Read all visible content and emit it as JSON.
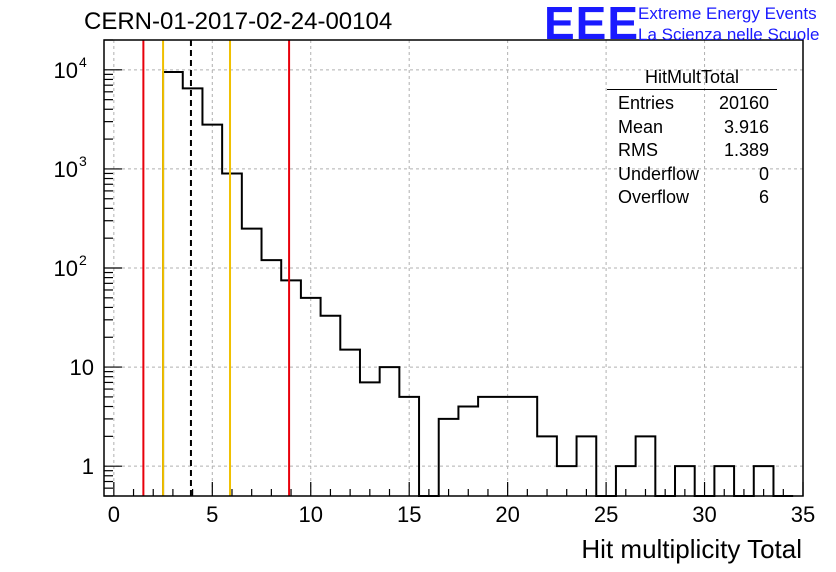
{
  "title": "CERN-01-2017-02-24-00104",
  "logo": {
    "mark": "EEE",
    "line1": "Extreme Energy Events",
    "line2": "La Scienza nelle Scuole",
    "color": "#1a1aff"
  },
  "stats_box": {
    "title": "HitMultTotal",
    "rows": [
      {
        "label": "Entries",
        "value": "20160"
      },
      {
        "label": "Mean",
        "value": "3.916"
      },
      {
        "label": "RMS",
        "value": "1.389"
      },
      {
        "label": "Underflow",
        "value": "0"
      },
      {
        "label": "Overflow",
        "value": "6"
      }
    ]
  },
  "chart_data": {
    "type": "histogram",
    "title": "CERN-01-2017-02-24-00104",
    "xlabel": "Hit multiplicity Total",
    "ylabel": "",
    "xlim": [
      -0.5,
      35
    ],
    "ylim": [
      0.5,
      20000
    ],
    "yscale": "log",
    "grid": true,
    "bin_width": 1,
    "bin_edges_start": -0.5,
    "bin_contents": [
      0,
      0,
      0,
      9500,
      6500,
      2800,
      900,
      250,
      120,
      75,
      50,
      33,
      15,
      7,
      10,
      5,
      0,
      3,
      4,
      5,
      5,
      5,
      2,
      1,
      2,
      0,
      1,
      2,
      0,
      1,
      0,
      1,
      0,
      1,
      0
    ],
    "xticks": [
      0,
      5,
      10,
      15,
      20,
      25,
      30,
      35
    ],
    "xtick_labels": [
      "0",
      "5",
      "10",
      "15",
      "20",
      "25",
      "30",
      "35"
    ],
    "yticks": [
      1,
      10,
      100,
      1000,
      10000
    ],
    "ytick_labels": [
      "1",
      "10",
      "10^2",
      "10^3",
      "10^4"
    ],
    "vertical_lines": [
      {
        "x": 1.5,
        "color": "#e8000b",
        "style": "solid"
      },
      {
        "x": 2.5,
        "color": "#f0c000",
        "style": "solid"
      },
      {
        "x": 3.916,
        "color": "#000000",
        "style": "dashed"
      },
      {
        "x": 5.9,
        "color": "#f0c000",
        "style": "solid"
      },
      {
        "x": 8.9,
        "color": "#e8000b",
        "style": "solid"
      }
    ]
  }
}
